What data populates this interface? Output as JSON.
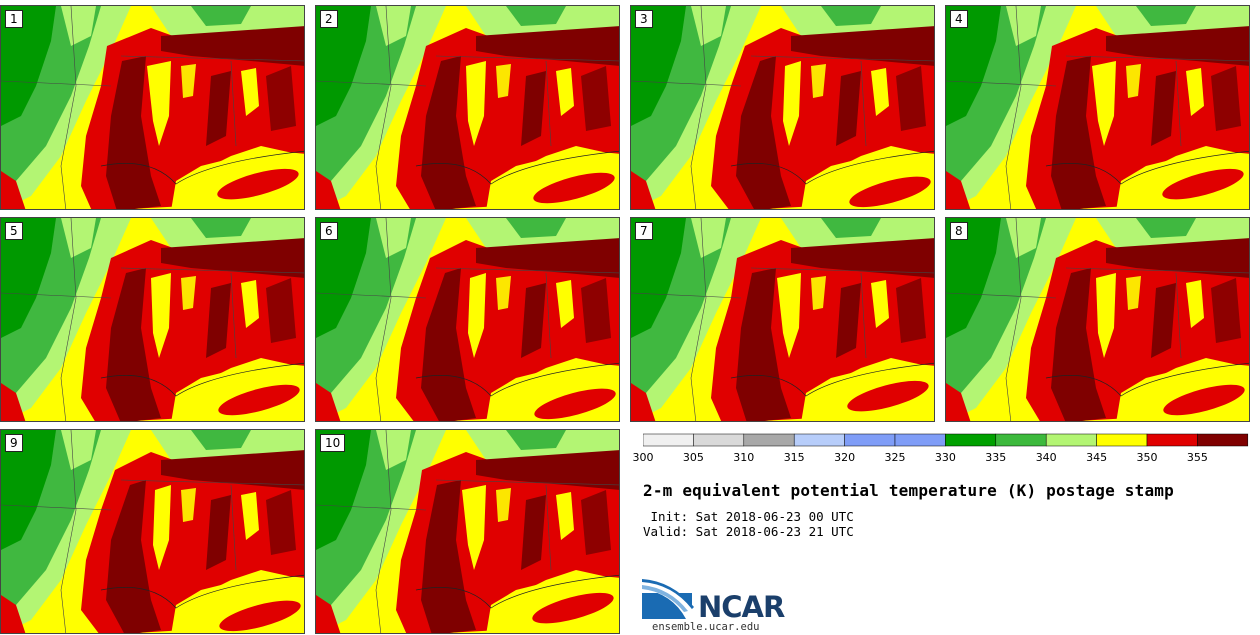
{
  "panels": [
    {
      "label": "1"
    },
    {
      "label": "2"
    },
    {
      "label": "3"
    },
    {
      "label": "4"
    },
    {
      "label": "5"
    },
    {
      "label": "6"
    },
    {
      "label": "7"
    },
    {
      "label": "8"
    },
    {
      "label": "9"
    },
    {
      "label": "10"
    }
  ],
  "colorbar": {
    "ticks": [
      "300",
      "305",
      "310",
      "315",
      "320",
      "325",
      "330",
      "335",
      "340",
      "345",
      "350",
      "355"
    ],
    "colors": [
      "#f0f0f0",
      "#d9d9d9",
      "#a8a8a8",
      "#b7cdfa",
      "#7f9df7",
      "#7f9df7",
      "#00a000",
      "#3cb93c",
      "#b3f573",
      "#ffff00",
      "#e00000",
      "#7f0000"
    ]
  },
  "title": "2-m equivalent potential temperature (K) postage stamp",
  "init": " Init: Sat 2018-06-23 00 UTC",
  "valid": "Valid: Sat 2018-06-23 21 UTC",
  "logo": {
    "text": "NCAR"
  },
  "url": "ensemble.ucar.edu",
  "map_colors": {
    "deep_green": "#009900",
    "mid_green": "#40b840",
    "light_green": "#b3f573",
    "yellow": "#ffff00",
    "red": "#e00000",
    "dark_red": "#7f0000"
  }
}
